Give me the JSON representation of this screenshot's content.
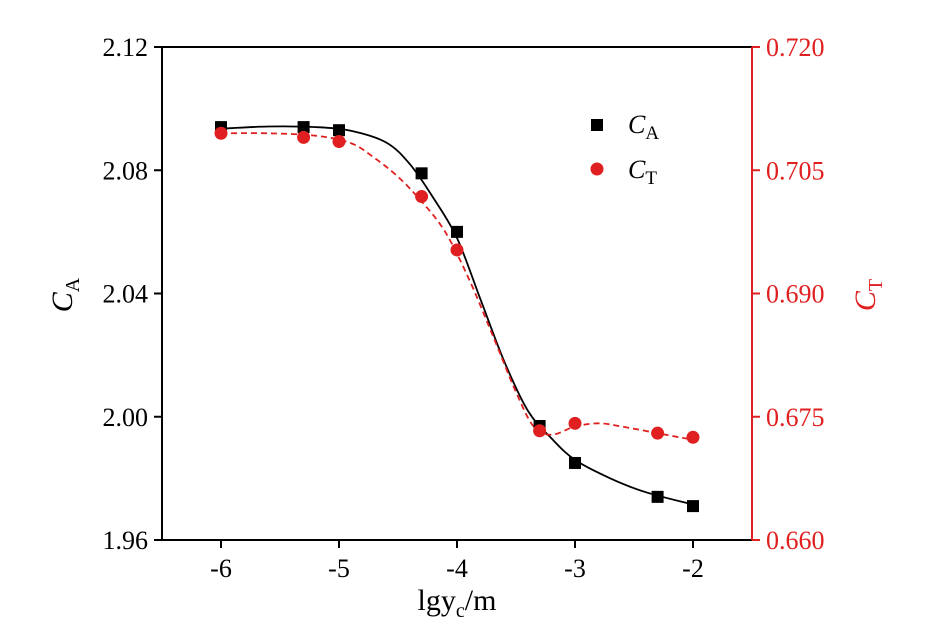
{
  "chart_data": {
    "type": "line",
    "x": [
      -6,
      -5.3,
      -5,
      -4.3,
      -4,
      -3.3,
      -3,
      -2.3,
      -2
    ],
    "xlabel": {
      "main": "lgy",
      "sub": "c",
      "unit": "/m"
    },
    "xlim": [
      -6.5,
      -1.5
    ],
    "xticks": [
      -6,
      -5,
      -4,
      -3,
      -2
    ],
    "xtick_labels": [
      "-6",
      "-5",
      "-4",
      "-3",
      "-2"
    ],
    "y_left": {
      "label": {
        "main": "C",
        "sub": "A"
      },
      "lim": [
        1.96,
        2.12
      ],
      "ticks": [
        1.96,
        2.0,
        2.04,
        2.08,
        2.12
      ],
      "tick_labels": [
        "1.96",
        "2.00",
        "2.04",
        "2.08",
        "2.12"
      ],
      "color": "#000000"
    },
    "y_right": {
      "label": {
        "main": "C",
        "sub": "T"
      },
      "lim": [
        0.66,
        0.72
      ],
      "ticks": [
        0.66,
        0.675,
        0.69,
        0.705,
        0.72
      ],
      "tick_labels": [
        "0.660",
        "0.675",
        "0.690",
        "0.705",
        "0.720"
      ],
      "color": "#e02020"
    },
    "series": [
      {
        "name": {
          "main": "C",
          "sub": "A"
        },
        "axis": "left",
        "marker": "square",
        "line": "solid",
        "color": "#000000",
        "values": [
          2.094,
          2.094,
          2.093,
          2.079,
          2.06,
          1.997,
          1.985,
          1.974,
          1.971
        ],
        "curve": [
          [
            -6.0,
            2.0935
          ],
          [
            -5.6,
            2.0942
          ],
          [
            -5.2,
            2.094
          ],
          [
            -4.9,
            2.0928
          ],
          [
            -4.6,
            2.089
          ],
          [
            -4.4,
            2.082
          ],
          [
            -4.2,
            2.071
          ],
          [
            -4.0,
            2.058
          ],
          [
            -3.8,
            2.038
          ],
          [
            -3.6,
            2.018
          ],
          [
            -3.4,
            2.002
          ],
          [
            -3.2,
            1.993
          ],
          [
            -3.0,
            1.986
          ],
          [
            -2.7,
            1.98
          ],
          [
            -2.4,
            1.9755
          ],
          [
            -2.0,
            1.9715
          ]
        ]
      },
      {
        "name": {
          "main": "C",
          "sub": "T"
        },
        "axis": "right",
        "marker": "circle",
        "line": "dashed",
        "color": "#e02020",
        "values": [
          0.7095,
          0.709,
          0.7085,
          0.7018,
          0.6953,
          0.6733,
          0.6742,
          0.673,
          0.6725
        ],
        "curve": [
          [
            -6.0,
            0.7095
          ],
          [
            -5.6,
            0.7095
          ],
          [
            -5.2,
            0.7092
          ],
          [
            -4.9,
            0.7083
          ],
          [
            -4.7,
            0.7065
          ],
          [
            -4.5,
            0.7042
          ],
          [
            -4.3,
            0.7012
          ],
          [
            -4.1,
            0.6975
          ],
          [
            -3.9,
            0.6918
          ],
          [
            -3.7,
            0.685
          ],
          [
            -3.5,
            0.678
          ],
          [
            -3.35,
            0.6738
          ],
          [
            -3.2,
            0.6728
          ],
          [
            -3.0,
            0.6738
          ],
          [
            -2.8,
            0.6742
          ],
          [
            -2.6,
            0.6738
          ],
          [
            -2.3,
            0.673
          ],
          [
            -2.0,
            0.6722
          ]
        ]
      }
    ],
    "legend": {
      "placement": "top-right"
    },
    "grid": false
  }
}
